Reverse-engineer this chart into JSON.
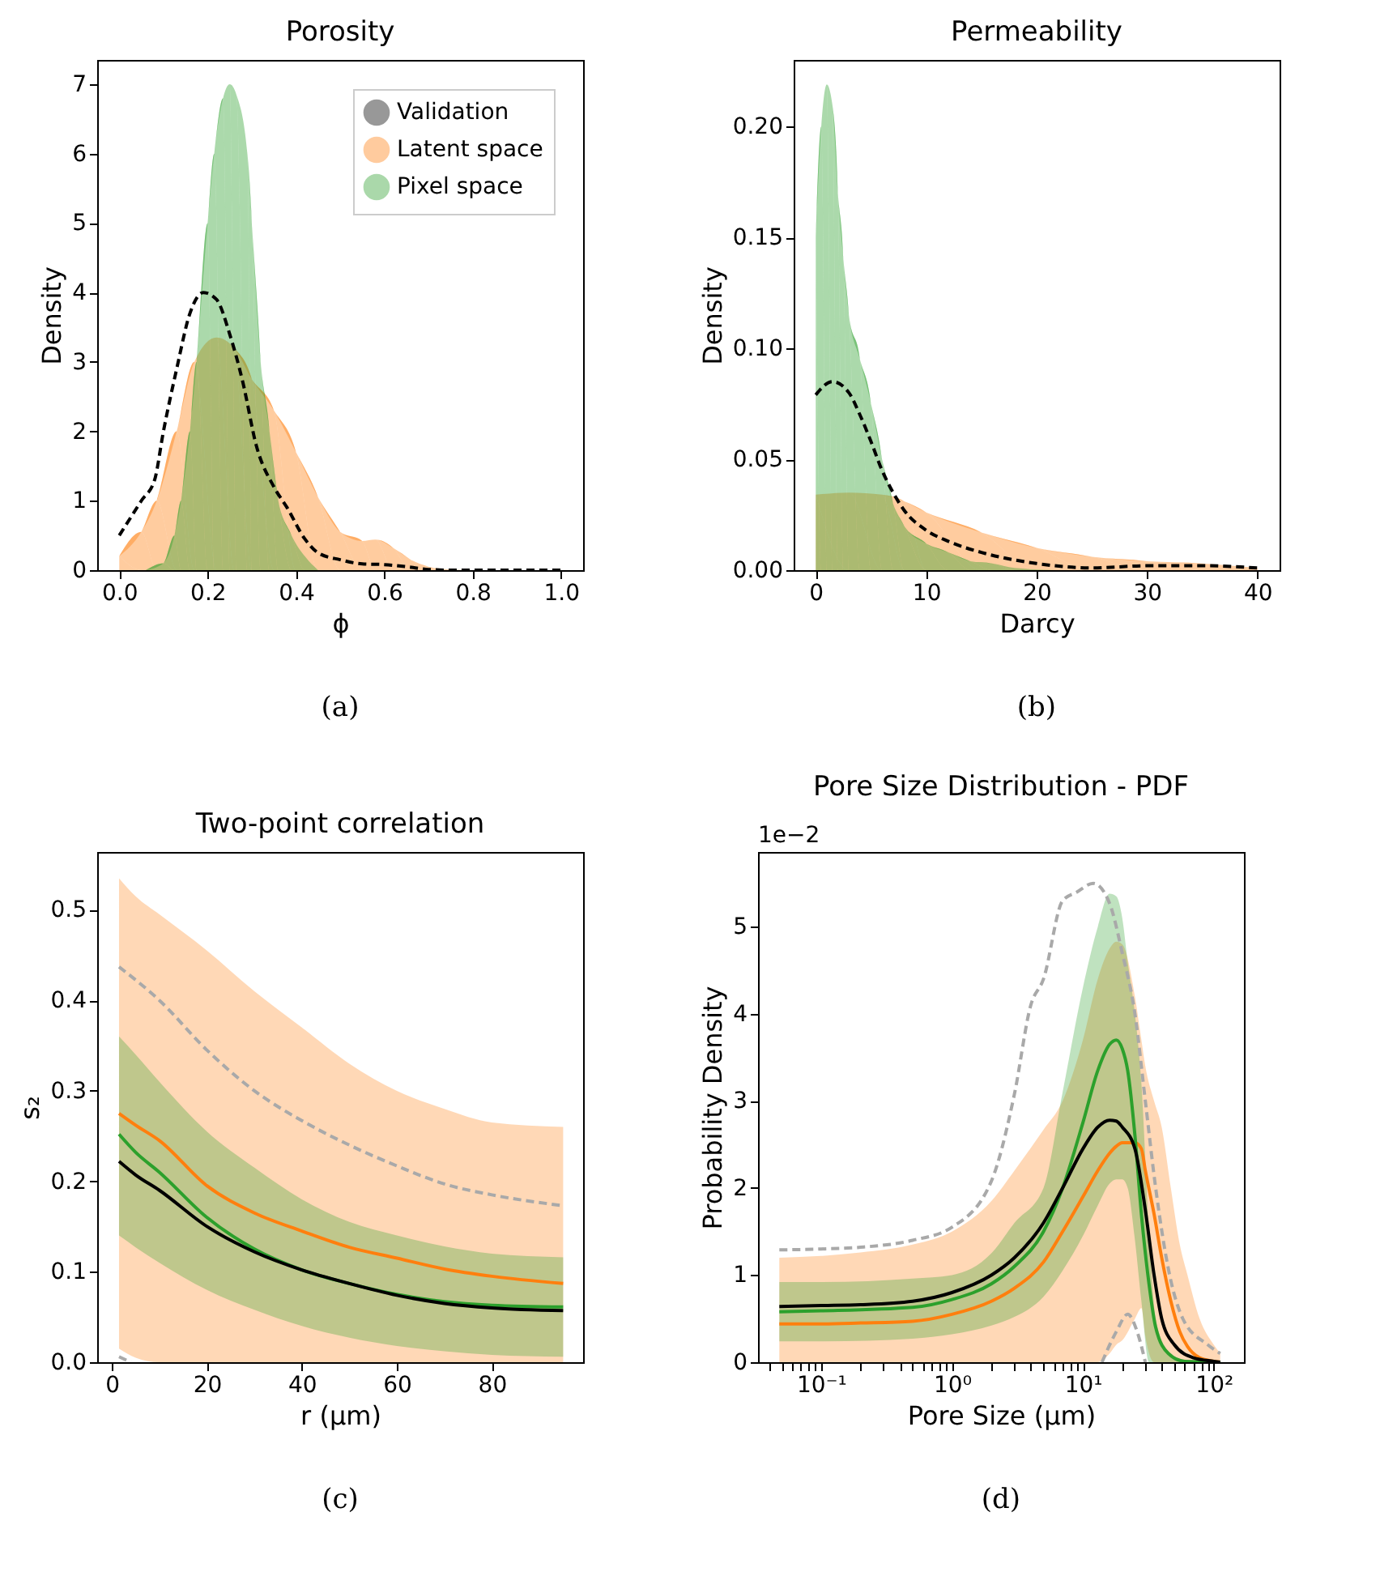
{
  "chart_data": [
    {
      "type": "area",
      "title": "Porosity",
      "xlabel": "ϕ",
      "ylabel": "Density",
      "xlim": [
        -0.05,
        1.05
      ],
      "ylim": [
        0,
        7.35
      ],
      "xticks": [
        {
          "value": 0,
          "label": "0.0"
        },
        0.2,
        0.4,
        0.6,
        0.8,
        {
          "value": 1,
          "label": "1.0"
        }
      ],
      "yticks": [
        0,
        1,
        2,
        3,
        4,
        5,
        6,
        7
      ],
      "legend": "top right",
      "annotations": [
        "(a)"
      ],
      "series": [
        {
          "name": "Validation",
          "type": "line",
          "line_style": "dashed",
          "color": "#000000",
          "x": [
            0,
            0.05,
            0.08,
            0.1,
            0.13,
            0.16,
            0.19,
            0.22,
            0.25,
            0.28,
            0.31,
            0.35,
            0.38,
            0.42,
            0.45,
            0.5,
            0.55,
            0.6,
            0.65,
            0.7,
            0.75,
            1.0
          ],
          "values": [
            0.5,
            1.0,
            1.3,
            2.0,
            2.9,
            3.7,
            4.0,
            3.9,
            3.4,
            2.7,
            1.8,
            1.2,
            0.9,
            0.45,
            0.25,
            0.15,
            0.09,
            0.08,
            0.05,
            0.01,
            0,
            0
          ]
        },
        {
          "name": "Latent space",
          "type": "area",
          "color": "#ff7f0e",
          "x": [
            0,
            0.05,
            0.085,
            0.13,
            0.17,
            0.22,
            0.26,
            0.3,
            0.35,
            0.4,
            0.45,
            0.5,
            0.55,
            0.58,
            0.62,
            0.66,
            0.7,
            0.75,
            0.8
          ],
          "values": [
            0.2,
            0.55,
            1,
            2,
            3,
            3.35,
            3.2,
            2.75,
            2.3,
            1.7,
            1.05,
            0.55,
            0.42,
            0.44,
            0.32,
            0.15,
            0.05,
            0.01,
            0
          ]
        },
        {
          "name": "Pixel space",
          "type": "area",
          "color": "#2ca02c",
          "x": [
            0.06,
            0.1,
            0.125,
            0.14,
            0.16,
            0.175,
            0.2,
            0.215,
            0.235,
            0.25,
            0.265,
            0.29,
            0.3,
            0.32,
            0.34,
            0.36,
            0.39,
            0.42,
            0.45
          ],
          "values": [
            0,
            0.1,
            0.5,
            1,
            2,
            3,
            5,
            6,
            6.8,
            7.0,
            6.85,
            6,
            5,
            3,
            2,
            1,
            0.5,
            0.2,
            0
          ]
        }
      ]
    },
    {
      "type": "area",
      "title": "Permeability",
      "xlabel": "Darcy",
      "ylabel": "Density",
      "xlim": [
        -2,
        42
      ],
      "ylim": [
        0,
        0.23
      ],
      "xticks": [
        0,
        10,
        20,
        30,
        40
      ],
      "yticks": [
        {
          "value": 0,
          "label": "0.00"
        },
        0.05,
        {
          "value": 0.1,
          "label": "0.10"
        },
        0.15,
        {
          "value": 0.2,
          "label": "0.20"
        }
      ],
      "annotations": [
        "(b)"
      ],
      "series": [
        {
          "type": "area",
          "color": "#ff7f0e",
          "x": [
            0,
            3,
            6,
            8,
            10,
            15,
            20,
            25,
            30,
            35,
            40
          ],
          "values": [
            0.034,
            0.035,
            0.034,
            0.031,
            0.026,
            0.017,
            0.01,
            0.006,
            0.004,
            0.003,
            0.001
          ]
        },
        {
          "type": "area",
          "color": "#2ca02c",
          "x": [
            0,
            0.5,
            1,
            1.5,
            2,
            2.5,
            3,
            4,
            5,
            6,
            7,
            8,
            10,
            12,
            14,
            16,
            18,
            22
          ],
          "values": [
            0.15,
            0.2,
            0.219,
            0.21,
            0.17,
            0.14,
            0.115,
            0.095,
            0.075,
            0.05,
            0.03,
            0.02,
            0.012,
            0.008,
            0.004,
            0.003,
            0.001,
            0
          ]
        },
        {
          "type": "line",
          "line_style": "dashed",
          "color": "#000000",
          "x": [
            0,
            1.5,
            3,
            4,
            5,
            6,
            7,
            8,
            10,
            12,
            15,
            20,
            25,
            30,
            35,
            40
          ],
          "values": [
            0.079,
            0.085,
            0.08,
            0.07,
            0.058,
            0.045,
            0.035,
            0.027,
            0.018,
            0.013,
            0.008,
            0.003,
            0.001,
            0.002,
            0.002,
            0.001
          ]
        }
      ]
    },
    {
      "type": "line",
      "title": "Two-point correlation",
      "xlabel": "r (μm)",
      "ylabel": "s₂",
      "xlim": [
        -3.1,
        99.2
      ],
      "ylim": [
        0,
        0.564
      ],
      "xticks": [
        0,
        20,
        40,
        60,
        80
      ],
      "yticks": [
        {
          "value": 0,
          "label": "0.0"
        },
        0.1,
        0.2,
        0.3,
        0.4,
        0.5
      ],
      "annotations": [
        "(c)"
      ],
      "series": [
        {
          "color": "#ff7f0e",
          "line_style": "solid",
          "x": [
            1.5,
            5,
            10,
            20,
            30,
            40,
            50,
            60,
            70,
            80,
            95
          ],
          "values": [
            0.275,
            0.262,
            0.245,
            0.195,
            0.165,
            0.145,
            0.127,
            0.115,
            0.103,
            0.095,
            0.087
          ],
          "upper": [
            0.535,
            0.515,
            0.495,
            0.455,
            0.41,
            0.37,
            0.33,
            0.3,
            0.28,
            0.265,
            0.26
          ],
          "lower": [
            0.015,
            0.005,
            0,
            0,
            0,
            0,
            0,
            0,
            0,
            0,
            0
          ]
        },
        {
          "color": "#2ca02c",
          "line_style": "solid",
          "x": [
            1.5,
            5,
            10,
            20,
            30,
            40,
            50,
            60,
            70,
            80,
            95
          ],
          "values": [
            0.252,
            0.232,
            0.21,
            0.16,
            0.125,
            0.102,
            0.087,
            0.075,
            0.067,
            0.063,
            0.061
          ],
          "upper": [
            0.36,
            0.34,
            0.31,
            0.255,
            0.215,
            0.18,
            0.155,
            0.14,
            0.128,
            0.12,
            0.116
          ],
          "lower": [
            0.14,
            0.127,
            0.11,
            0.08,
            0.058,
            0.04,
            0.027,
            0.018,
            0.012,
            0.008,
            0.006
          ]
        },
        {
          "color": "#a9a9a9",
          "line_style": "dashed",
          "x": [
            1.5,
            10,
            20,
            30,
            40,
            50,
            60,
            70,
            80,
            95
          ],
          "values": [
            0.437,
            0.4,
            0.345,
            0.3,
            0.267,
            0.24,
            0.217,
            0.197,
            0.185,
            0.173
          ]
        },
        {
          "color": "#a9a9a9",
          "line_style": "dashed",
          "x": [
            1.5,
            4
          ],
          "values": [
            0.006,
            0
          ]
        },
        {
          "color": "#000000",
          "line_style": "solid",
          "x": [
            1.5,
            5,
            10,
            20,
            30,
            40,
            50,
            60,
            70,
            80,
            95
          ],
          "values": [
            0.222,
            0.207,
            0.19,
            0.15,
            0.122,
            0.102,
            0.087,
            0.074,
            0.065,
            0.06,
            0.057
          ]
        }
      ]
    },
    {
      "type": "line",
      "title": "Pore Size Distribution - PDF",
      "xlabel": "Pore Size (μm)",
      "ylabel": "Probability Density",
      "log": "x",
      "xlim": [
        0.033,
        170
      ],
      "ylim": [
        0,
        5.86
      ],
      "xticks": [
        {
          "value": 0.04,
          "label": null
        },
        {
          "value": 0.05,
          "label": null
        },
        {
          "value": 0.06,
          "label": null
        },
        {
          "value": 0.07,
          "label": null
        },
        {
          "value": 0.08,
          "label": null
        },
        {
          "value": 0.09,
          "label": null
        },
        {
          "value": 0.1,
          "label": "10⁻¹"
        },
        {
          "value": 0.2,
          "label": null
        },
        {
          "value": 0.3,
          "label": null
        },
        {
          "value": 0.4,
          "label": null
        },
        {
          "value": 0.5,
          "label": null
        },
        {
          "value": 0.6,
          "label": null
        },
        {
          "value": 0.7,
          "label": null
        },
        {
          "value": 0.8,
          "label": null
        },
        {
          "value": 0.9,
          "label": null
        },
        {
          "value": 1,
          "label": "10⁰"
        },
        {
          "value": 2,
          "label": null
        },
        {
          "value": 3,
          "label": null
        },
        {
          "value": 4,
          "label": null
        },
        {
          "value": 5,
          "label": null
        },
        {
          "value": 6,
          "label": null
        },
        {
          "value": 7,
          "label": null
        },
        {
          "value": 8,
          "label": null
        },
        {
          "value": 9,
          "label": null
        },
        {
          "value": 10,
          "label": "10¹"
        },
        {
          "value": 20,
          "label": null
        },
        {
          "value": 30,
          "label": null
        },
        {
          "value": 40,
          "label": null
        },
        {
          "value": 50,
          "label": null
        },
        {
          "value": 60,
          "label": null
        },
        {
          "value": 70,
          "label": null
        },
        {
          "value": 80,
          "label": null
        },
        {
          "value": 90,
          "label": null
        },
        {
          "value": 100,
          "label": "10²"
        }
      ],
      "yticks": [
        0,
        1,
        2,
        3,
        4,
        5
      ],
      "annotations": [
        "1e−2",
        "(d)"
      ],
      "series": [
        {
          "color": "#ff7f0e",
          "line_style": "solid",
          "x": [
            0.048,
            0.1,
            0.2,
            0.5,
            1,
            2,
            3,
            5,
            7,
            10,
            13,
            16,
            18,
            20,
            25,
            28,
            30,
            35,
            40,
            47,
            55,
            63,
            78,
            100,
            112
          ],
          "values": [
            0.44,
            0.44,
            0.45,
            0.47,
            0.55,
            0.7,
            0.85,
            1.15,
            1.5,
            1.9,
            2.2,
            2.4,
            2.48,
            2.52,
            2.52,
            2.45,
            2.2,
            1.7,
            1.2,
            0.7,
            0.35,
            0.18,
            0.05,
            0.01,
            0
          ],
          "upper": [
            1.2,
            1.22,
            1.26,
            1.35,
            1.5,
            1.85,
            2.2,
            2.67,
            3.0,
            3.7,
            4.4,
            4.75,
            4.83,
            4.8,
            4.2,
            3.7,
            3.4,
            3.0,
            2.7,
            2.0,
            1.35,
            1.0,
            0.5,
            0.2,
            0.1
          ],
          "lower": [
            0,
            0,
            0,
            0,
            0,
            0,
            0,
            0,
            0,
            0,
            0,
            0.1,
            0.2,
            0.25,
            0.5,
            0.62,
            0.3,
            0,
            0,
            0,
            0,
            0,
            0,
            0,
            0
          ]
        },
        {
          "color": "#2ca02c",
          "line_style": "solid",
          "x": [
            0.048,
            0.1,
            0.5,
            1,
            2,
            3,
            5,
            7,
            10,
            13,
            16,
            18,
            20,
            22,
            25,
            28,
            32,
            36,
            45,
            60,
            112
          ],
          "values": [
            0.58,
            0.59,
            0.63,
            0.72,
            0.9,
            1.1,
            1.5,
            2.0,
            2.75,
            3.35,
            3.65,
            3.7,
            3.6,
            3.35,
            2.6,
            1.7,
            0.9,
            0.4,
            0.1,
            0.01,
            0
          ],
          "upper": [
            0.92,
            0.92,
            0.96,
            1.0,
            1.25,
            1.6,
            2.0,
            3.1,
            4.3,
            5.0,
            5.38,
            5.35,
            5.1,
            4.6,
            4.0,
            3.2,
            1.5,
            0.5,
            0.12,
            0.01,
            0
          ],
          "lower": [
            0.24,
            0.24,
            0.27,
            0.32,
            0.42,
            0.52,
            0.75,
            1.05,
            1.45,
            1.8,
            2.05,
            2.1,
            2.1,
            2.0,
            1.4,
            0.7,
            0,
            0,
            0,
            0,
            0
          ]
        },
        {
          "color": "#a9a9a9",
          "line_style": "dashed",
          "x": [
            0.048,
            0.1,
            0.2,
            0.5,
            1,
            2,
            3,
            4,
            5,
            7,
            9,
            12,
            16,
            20,
            25,
            30,
            36,
            46,
            58,
            90,
            112
          ],
          "values": [
            1.29,
            1.3,
            1.32,
            1.4,
            1.55,
            2.08,
            3.08,
            4.1,
            4.4,
            5.3,
            5.4,
            5.5,
            5.27,
            4.7,
            4.0,
            3.0,
            2.0,
            1.0,
            0.5,
            0.2,
            0.1
          ]
        },
        {
          "color": "#a9a9a9",
          "line_style": "dashed",
          "x": [
            14,
            18,
            22,
            26,
            30
          ],
          "values": [
            0,
            0.35,
            0.55,
            0.35,
            0
          ]
        },
        {
          "color": "#000000",
          "line_style": "solid",
          "x": [
            0.048,
            0.1,
            0.2,
            0.5,
            1,
            2,
            3,
            5,
            7,
            10,
            13,
            16,
            18,
            20,
            25,
            30,
            35,
            40,
            50,
            70,
            100,
            112
          ],
          "values": [
            0.64,
            0.65,
            0.66,
            0.7,
            0.8,
            1.0,
            1.2,
            1.6,
            2.0,
            2.45,
            2.7,
            2.78,
            2.77,
            2.7,
            2.45,
            1.75,
            1.0,
            0.5,
            0.2,
            0.05,
            0.01,
            0
          ]
        }
      ]
    }
  ]
}
